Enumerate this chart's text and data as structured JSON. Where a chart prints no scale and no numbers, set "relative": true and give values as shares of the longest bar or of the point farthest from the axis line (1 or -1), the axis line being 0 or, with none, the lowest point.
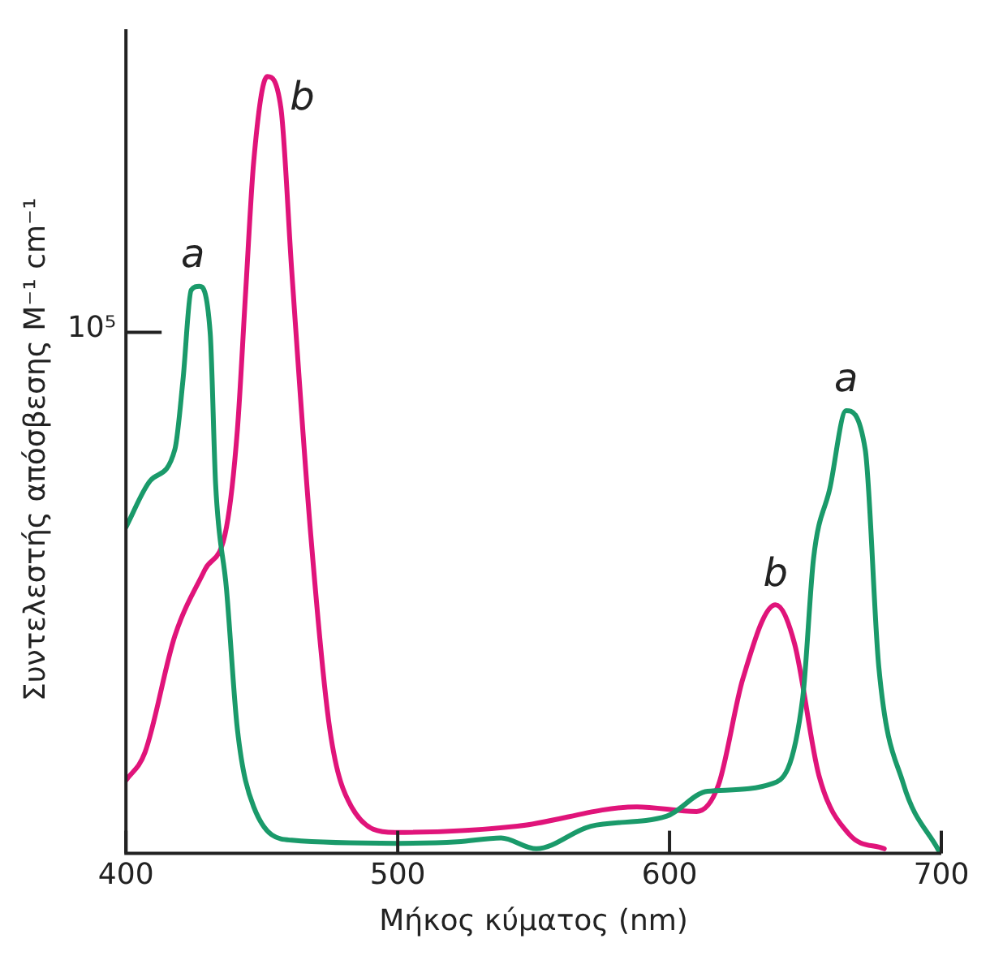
{
  "chart_data": {
    "type": "line",
    "xlabel": "Μήκος κύματος (nm)",
    "ylabel": "Συντελεστής απόσβεσης M⁻¹ cm⁻¹",
    "relative": true,
    "xlim": [
      400,
      700
    ],
    "xticks": [
      400,
      500,
      600,
      700
    ],
    "grid": false,
    "legend": false,
    "marker": "none",
    "line_style": "solid",
    "series": [
      {
        "name": "a",
        "color": "#1a9a6a",
        "x": [
          400,
          409,
          418,
          421,
          424,
          427,
          431,
          433,
          437,
          441,
          447,
          461,
          500,
          522,
          538,
          551,
          571,
          599,
          614,
          638,
          649,
          653,
          659,
          665,
          672,
          677,
          686,
          699
        ],
        "values": [
          0.42,
          0.48,
          0.52,
          0.61,
          0.725,
          0.73,
          0.67,
          0.475,
          0.34,
          0.16,
          0.06,
          0.017,
          0.013,
          0.015,
          0.02,
          0.006,
          0.035,
          0.048,
          0.08,
          0.09,
          0.2,
          0.38,
          0.47,
          0.57,
          0.52,
          0.24,
          0.09,
          0.004
        ]
      },
      {
        "name": "b",
        "color": "#e0147a",
        "x": [
          400,
          407,
          418,
          429,
          437,
          441,
          444,
          447,
          452,
          457,
          461,
          468,
          475,
          483,
          499,
          544,
          588,
          610,
          618,
          627,
          639,
          646,
          655,
          666,
          679
        ],
        "values": [
          0.094,
          0.13,
          0.28,
          0.365,
          0.42,
          0.545,
          0.72,
          0.89,
          1.0,
          0.96,
          0.75,
          0.41,
          0.16,
          0.06,
          0.027,
          0.035,
          0.06,
          0.054,
          0.088,
          0.225,
          0.32,
          0.27,
          0.1,
          0.025,
          0.006
        ]
      }
    ],
    "annotations": [
      "10⁵",
      {
        "text": "a",
        "x": 665,
        "y": 0.57
      },
      {
        "text": "b",
        "x": 639,
        "y": 0.32
      }
    ]
  }
}
